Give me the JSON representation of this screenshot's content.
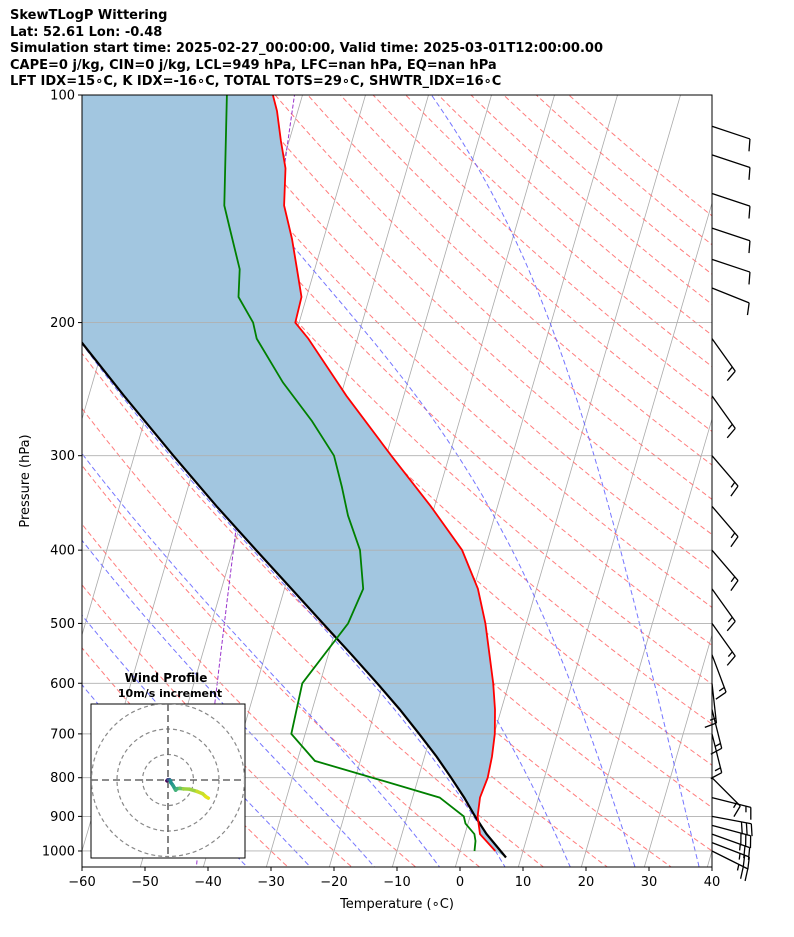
{
  "header": {
    "line1": "SkewTLogP Wittering",
    "line2": "Lat: 52.61   Lon: -0.48",
    "line3": "Simulation start time: 2025-02-27_00:00:00, Valid time: 2025-03-01T12:00:00.00",
    "line4": "CAPE=0 j/kg, CIN=0 j/kg, LCL=949 hPa, LFC=nan hPa, EQ=nan hPa",
    "line5": "LFT IDX=15∘C, K IDX=-16∘C, TOTAL TOTS=29∘C, SHWTR_IDX=16∘C"
  },
  "colors": {
    "temperature": "#ff0000",
    "dewpoint": "#008000",
    "parcel": "#000000",
    "shade": "#a2c6e0",
    "dry_adiabat": "#ff6666",
    "moist_adiabat": "#6666ff",
    "mixing_ratio": "#9933cc",
    "isotherm": "#aaaaaa"
  },
  "chart_data": {
    "type": "line",
    "xlabel": "Temperature (∘C)",
    "ylabel": "Pressure (hPa)",
    "xlim": [
      -60,
      40
    ],
    "ylim": [
      1050,
      100
    ],
    "y_scale": "log",
    "grid": true,
    "x_ticks": [
      -60,
      -50,
      -40,
      -30,
      -20,
      -10,
      0,
      10,
      20,
      30,
      40
    ],
    "y_ticks": [
      1000,
      900,
      800,
      700,
      600,
      500,
      400,
      300,
      200,
      100
    ],
    "series": [
      {
        "name": "temperature",
        "points": [
          [
            1000,
            5.6
          ],
          [
            950,
            2.4
          ],
          [
            900,
            1.2
          ],
          [
            850,
            0.7
          ],
          [
            800,
            1.0
          ],
          [
            750,
            0.7
          ],
          [
            700,
            0.1
          ],
          [
            650,
            -1.0
          ],
          [
            600,
            -2.5
          ],
          [
            550,
            -4.4
          ],
          [
            500,
            -6.5
          ],
          [
            450,
            -9.3
          ],
          [
            400,
            -13.6
          ],
          [
            350,
            -20.6
          ],
          [
            300,
            -29.2
          ],
          [
            250,
            -39.1
          ],
          [
            210,
            -47.8
          ],
          [
            200,
            -50.6
          ],
          [
            185,
            -50.8
          ],
          [
            170,
            -52.8
          ],
          [
            155,
            -55.0
          ],
          [
            140,
            -57.8
          ],
          [
            125,
            -59.3
          ],
          [
            115,
            -61.3
          ],
          [
            105,
            -63.3
          ],
          [
            100,
            -64.7
          ]
        ]
      },
      {
        "name": "dewpoint",
        "points": [
          [
            1000,
            2.3
          ],
          [
            970,
            2.0
          ],
          [
            950,
            1.5
          ],
          [
            920,
            -0.4
          ],
          [
            900,
            -1.0
          ],
          [
            850,
            -5.7
          ],
          [
            800,
            -17.3
          ],
          [
            760,
            -27.2
          ],
          [
            700,
            -32.2
          ],
          [
            600,
            -32.8
          ],
          [
            500,
            -28.3
          ],
          [
            450,
            -27.5
          ],
          [
            400,
            -29.8
          ],
          [
            360,
            -33.3
          ],
          [
            330,
            -35.6
          ],
          [
            300,
            -38.3
          ],
          [
            270,
            -43.4
          ],
          [
            240,
            -49.8
          ],
          [
            210,
            -56.0
          ],
          [
            200,
            -57.3
          ],
          [
            185,
            -60.8
          ],
          [
            170,
            -61.9
          ],
          [
            150,
            -65.4
          ],
          [
            140,
            -67.3
          ],
          [
            100,
            -72.0
          ]
        ]
      },
      {
        "name": "parcel",
        "points": [
          [
            1020,
            7.6
          ],
          [
            949,
            3.4
          ],
          [
            900,
            0.8
          ],
          [
            850,
            -1.8
          ],
          [
            800,
            -4.8
          ],
          [
            750,
            -8.1
          ],
          [
            700,
            -11.9
          ],
          [
            650,
            -16.1
          ],
          [
            600,
            -20.9
          ],
          [
            550,
            -26.3
          ],
          [
            500,
            -32.3
          ],
          [
            450,
            -38.9
          ],
          [
            400,
            -46.3
          ],
          [
            350,
            -54.6
          ],
          [
            300,
            -63.8
          ],
          [
            250,
            -74.4
          ],
          [
            200,
            -87.0
          ],
          [
            150,
            -102.6
          ],
          [
            100,
            -122.9
          ]
        ]
      }
    ],
    "wind_barbs": [
      {
        "p": 1000,
        "u": -12,
        "v": 6
      },
      {
        "p": 975,
        "u": -13,
        "v": 5
      },
      {
        "p": 950,
        "u": -14,
        "v": 5
      },
      {
        "p": 925,
        "u": -15,
        "v": 4
      },
      {
        "p": 900,
        "u": -16,
        "v": 3
      },
      {
        "p": 850,
        "u": -8,
        "v": 2
      },
      {
        "p": 800,
        "u": -6,
        "v": 6
      },
      {
        "p": 700,
        "u": -2,
        "v": 8
      },
      {
        "p": 650,
        "u": -2,
        "v": 8
      },
      {
        "p": 600,
        "u": -1,
        "v": 9
      },
      {
        "p": 550,
        "u": -3,
        "v": 8
      },
      {
        "p": 500,
        "u": -5,
        "v": 7
      },
      {
        "p": 450,
        "u": -5,
        "v": 7
      },
      {
        "p": 400,
        "u": -6,
        "v": 7
      },
      {
        "p": 350,
        "u": -6,
        "v": 7
      },
      {
        "p": 300,
        "u": -6,
        "v": 7
      },
      {
        "p": 250,
        "u": -5,
        "v": 7
      },
      {
        "p": 210,
        "u": -5,
        "v": 7
      },
      {
        "p": 180,
        "u": -5,
        "v": 2
      },
      {
        "p": 165,
        "u": -6,
        "v": 2
      },
      {
        "p": 150,
        "u": -6,
        "v": 2
      },
      {
        "p": 135,
        "u": -6,
        "v": 2
      },
      {
        "p": 120,
        "u": -6,
        "v": 2
      },
      {
        "p": 110,
        "u": -6,
        "v": 2
      }
    ],
    "hodograph": {
      "title": "Wind Profile",
      "subtitle": "10m/s increment",
      "ring_radius_ms": [
        10,
        20,
        30
      ],
      "points": [
        [
          -0.2,
          0.0
        ],
        [
          -0.4,
          -0.3
        ],
        [
          0.1,
          0.1
        ],
        [
          0.6,
          0.1
        ],
        [
          1.0,
          -0.3
        ],
        [
          1.1,
          -1.0
        ],
        [
          1.6,
          -1.6
        ],
        [
          2.0,
          -2.2
        ],
        [
          2.4,
          -2.9
        ],
        [
          3.0,
          -4.0
        ],
        [
          3.6,
          -3.4
        ],
        [
          4.7,
          -3.3
        ],
        [
          6.1,
          -3.5
        ],
        [
          8.4,
          -3.6
        ],
        [
          11.4,
          -4.5
        ],
        [
          13.6,
          -5.4
        ],
        [
          14.8,
          -6.5
        ],
        [
          15.8,
          -7.1
        ]
      ]
    }
  }
}
